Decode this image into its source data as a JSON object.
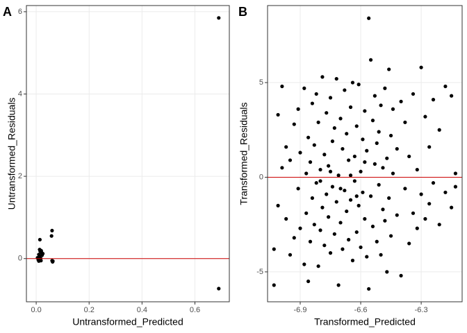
{
  "chart_data": [
    {
      "type": "scatter",
      "tag": "A",
      "xlabel": "Untransformed_Predicted",
      "ylabel": "Untransformed_Residuals",
      "x": [
        0.005,
        0.008,
        0.01,
        0.012,
        0.014,
        0.015,
        0.016,
        0.018,
        0.02,
        0.022,
        0.025,
        0.01,
        0.013,
        0.017,
        0.019,
        0.058,
        0.06,
        0.062,
        0.06,
        0.063,
        0.69,
        0.69
      ],
      "y": [
        0.02,
        -0.03,
        0.1,
        0.05,
        0.46,
        0.18,
        0.2,
        -0.05,
        0.15,
        0.08,
        0.12,
        -0.06,
        0.22,
        0.0,
        0.19,
        0.55,
        0.68,
        -0.08,
        -0.05,
        -0.06,
        5.85,
        -0.73
      ],
      "color": "#000000",
      "hline": 0,
      "hline_color": "#cc0000",
      "xlim": [
        -0.037,
        0.73
      ],
      "ylim": [
        -1.05,
        6.15
      ],
      "xticks": [
        {
          "value": 0,
          "label": "0.0"
        },
        0.2,
        0.4,
        0.6
      ],
      "yticks": [
        0,
        2,
        4,
        6
      ],
      "grid": true
    },
    {
      "type": "scatter",
      "tag": "B",
      "xlabel": "Transformed_Predicted",
      "ylabel": "Transformed_Residuals",
      "x": [
        -7.03,
        -7.03,
        -7.01,
        -7.01,
        -6.99,
        -6.99,
        -6.97,
        -6.97,
        -6.95,
        -6.95,
        -6.93,
        -6.93,
        -6.91,
        -6.91,
        -6.9,
        -6.9,
        -6.88,
        -6.88,
        -6.87,
        -6.87,
        -6.86,
        -6.86,
        -6.85,
        -6.85,
        -6.84,
        -6.84,
        -6.83,
        -6.83,
        -6.82,
        -6.82,
        -6.81,
        -6.81,
        -6.8,
        -6.8,
        -6.79,
        -6.79,
        -6.78,
        -6.78,
        -6.77,
        -6.77,
        -6.76,
        -6.76,
        -6.75,
        -6.75,
        -6.74,
        -6.74,
        -6.73,
        -6.73,
        -6.72,
        -6.72,
        -6.71,
        -6.71,
        -6.7,
        -6.7,
        -6.69,
        -6.69,
        -6.68,
        -6.68,
        -6.67,
        -6.67,
        -6.66,
        -6.66,
        -6.65,
        -6.65,
        -6.64,
        -6.64,
        -6.63,
        -6.63,
        -6.62,
        -6.62,
        -6.61,
        -6.61,
        -6.6,
        -6.6,
        -6.59,
        -6.59,
        -6.58,
        -6.58,
        -6.57,
        -6.57,
        -6.56,
        -6.56,
        -6.55,
        -6.55,
        -6.54,
        -6.54,
        -6.53,
        -6.53,
        -6.52,
        -6.52,
        -6.51,
        -6.51,
        -6.5,
        -6.5,
        -6.49,
        -6.49,
        -6.48,
        -6.48,
        -6.47,
        -6.47,
        -6.46,
        -6.46,
        -6.45,
        -6.45,
        -6.44,
        -6.44,
        -6.42,
        -6.42,
        -6.4,
        -6.4,
        -6.38,
        -6.38,
        -6.36,
        -6.36,
        -6.34,
        -6.34,
        -6.32,
        -6.32,
        -6.3,
        -6.3,
        -6.28,
        -6.28,
        -6.26,
        -6.26,
        -6.24,
        -6.24,
        -6.21,
        -6.21,
        -6.18,
        -6.18,
        -6.15,
        -6.15,
        -6.13,
        -6.13,
        -6.8,
        -6.75,
        -6.7,
        -6.65,
        -6.62,
        -6.58
      ],
      "y": [
        -5.7,
        -3.8,
        3.3,
        -1.5,
        4.8,
        0.5,
        -2.2,
        1.6,
        -4.1,
        0.9,
        2.8,
        -3.2,
        -0.6,
        3.6,
        -2.7,
        1.3,
        4.7,
        -4.6,
        0.2,
        -1.9,
        -5.5,
        2.1,
        -3.4,
        0.8,
        3.9,
        -1.1,
        -2.5,
        1.7,
        4.4,
        -0.3,
        -4.7,
        2.9,
        0.4,
        -2.8,
        5.3,
        -1.6,
        1.2,
        -3.6,
        3.4,
        -0.9,
        0.6,
        -2.1,
        4.2,
        -4.0,
        1.9,
        -0.5,
        -3.0,
        2.6,
        5.2,
        -1.3,
        -5.7,
        0.1,
        3.1,
        -2.4,
        1.5,
        -3.8,
        4.6,
        -0.7,
        2.3,
        -1.8,
        -3.3,
        0.9,
        3.7,
        -1.2,
        5.0,
        -4.4,
        1.1,
        -0.2,
        2.7,
        -2.9,
        4.9,
        -1.5,
        0.3,
        -3.7,
        2.0,
        -0.8,
        3.5,
        -2.2,
        1.4,
        -4.2,
        8.4,
        -5.9,
        6.2,
        -1.0,
        3.0,
        -2.6,
        0.7,
        4.3,
        -3.4,
        1.8,
        -0.4,
        2.4,
        -4.1,
        3.8,
        0.5,
        -1.7,
        4.7,
        -2.3,
        1.0,
        -5.0,
        5.7,
        -1.1,
        2.2,
        -3.1,
        0.2,
        3.6,
        -2.0,
        1.5,
        -5.2,
        4.0,
        -0.6,
        2.9,
        -3.5,
        1.1,
        4.4,
        -1.9,
        0.4,
        -2.7,
        5.8,
        -0.9,
        3.2,
        -2.2,
        1.6,
        -1.4,
        4.1,
        -0.3,
        2.5,
        -2.5,
        4.8,
        -0.8,
        4.3,
        -1.6,
        0.2,
        -0.5,
        -0.2,
        0.3,
        -0.6,
        0.1,
        -1.0,
        0.8
      ],
      "color": "#000000",
      "hline": 0,
      "hline_color": "#cc0000",
      "xlim": [
        -7.062,
        -6.097
      ],
      "ylim": [
        -6.58,
        9.07
      ],
      "xticks": [
        -6.9,
        -6.6,
        -6.3
      ],
      "yticks": [
        -5,
        0,
        5
      ],
      "grid": true
    }
  ]
}
